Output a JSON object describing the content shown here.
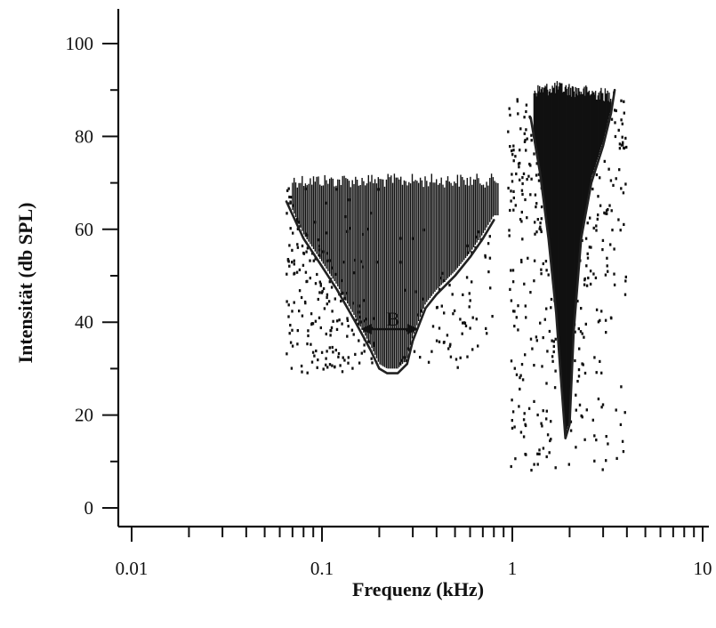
{
  "chart_data": {
    "type": "scatter",
    "title": "",
    "xlabel": "Frequenz (kHz)",
    "ylabel": "Intensität (db SPL)",
    "x_scale": "log",
    "xlim": [
      0.0085,
      12
    ],
    "ylim": [
      -3,
      107
    ],
    "x_ticks": [
      0.01,
      0.1,
      1,
      10
    ],
    "x_tick_labels": [
      "0.01",
      "0.1",
      "1",
      "10"
    ],
    "y_ticks": [
      0,
      20,
      40,
      60,
      80,
      100
    ],
    "y_tick_labels": [
      "0",
      "20",
      "40",
      "60",
      "80",
      "100"
    ],
    "grid": false,
    "annotation": {
      "label": "B",
      "x_from": 0.16,
      "x_to": 0.32,
      "y": 38.5
    },
    "series": [
      {
        "kind": "tuning_curve",
        "x": [
          0.065,
          0.08,
          0.1,
          0.12,
          0.15,
          0.18,
          0.2,
          0.22,
          0.25,
          0.28,
          0.3,
          0.35,
          0.4,
          0.5,
          0.6,
          0.7,
          0.8
        ],
        "y": [
          66,
          58,
          52,
          47,
          40,
          34,
          30,
          29,
          29,
          31,
          36,
          43,
          46,
          50,
          54,
          58,
          62
        ]
      },
      {
        "kind": "tuning_curve",
        "x": [
          1.25,
          1.4,
          1.55,
          1.7,
          1.8,
          1.9,
          2.0,
          2.1,
          2.3,
          2.6,
          3.0,
          3.3,
          3.45
        ],
        "y": [
          84,
          72,
          58,
          42,
          28,
          15,
          18,
          38,
          58,
          70,
          78,
          85,
          90
        ]
      },
      {
        "kind": "response_area",
        "x_from": 0.07,
        "x_to": 0.85,
        "y_top": 72
      },
      {
        "kind": "response_area",
        "x_from": 1.3,
        "x_to": 3.3,
        "y_top": 92
      }
    ]
  }
}
